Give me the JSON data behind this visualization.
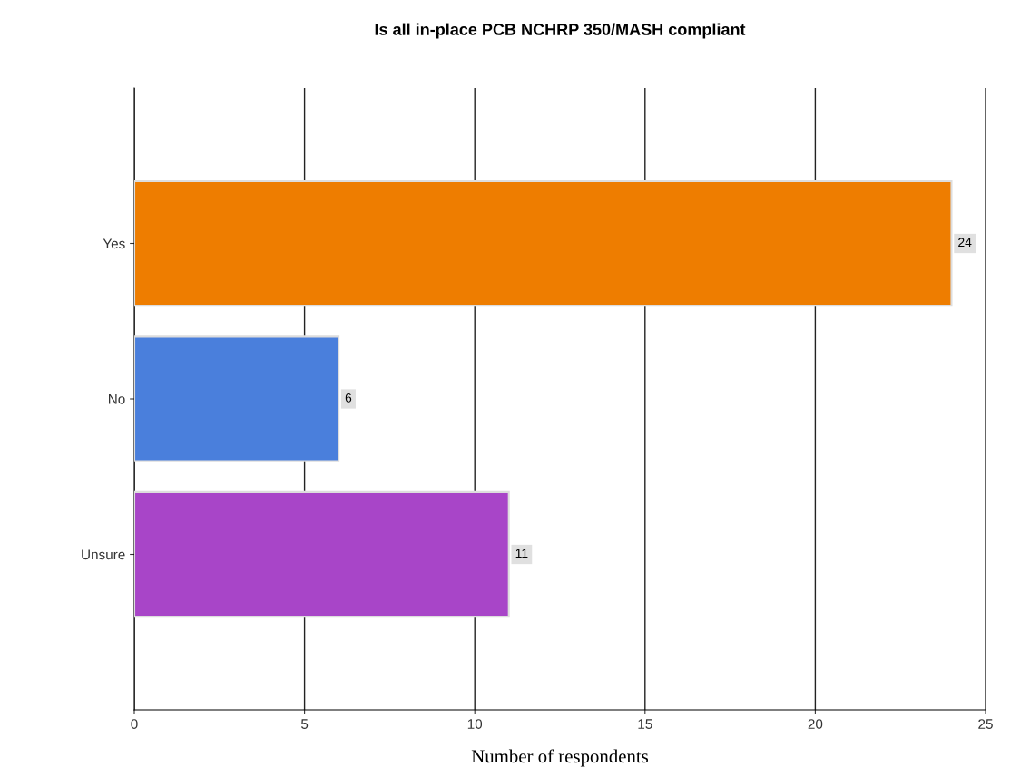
{
  "chart_data": {
    "type": "bar",
    "orientation": "horizontal",
    "title": "Is all in-place PCB NCHRP 350/MASH compliant",
    "xlabel": "Number of respondents",
    "categories": [
      "Yes",
      "No",
      "Unsure"
    ],
    "values": [
      24,
      6,
      11
    ],
    "colors": [
      "#ee7d00",
      "#4a7fdc",
      "#a845c8"
    ],
    "xlim": [
      0,
      25
    ],
    "xticks": [
      0,
      5,
      10,
      15,
      20,
      25
    ],
    "grid": "x",
    "data_labels": true
  }
}
